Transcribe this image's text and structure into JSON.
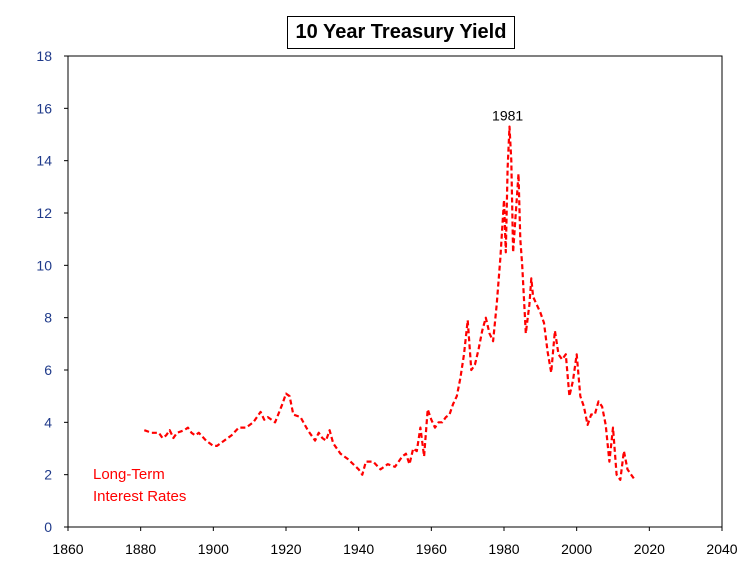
{
  "chart_data": {
    "type": "line",
    "title": "10 Year Treasury Yield",
    "xlabel": "",
    "ylabel": "",
    "xlim": [
      1860,
      2040
    ],
    "ylim": [
      0,
      18
    ],
    "xticks": [
      1860,
      1880,
      1900,
      1920,
      1940,
      1960,
      1980,
      2000,
      2020,
      2040
    ],
    "yticks": [
      0,
      2,
      4,
      6,
      8,
      10,
      12,
      14,
      16,
      18
    ],
    "grid": false,
    "legend": "none",
    "line_color": "#ff0000",
    "line_style": "dashed",
    "annotations": [
      {
        "text": "1981",
        "x": 1981,
        "y": 15.3
      },
      {
        "text_lines": [
          "Long-Term",
          "Interest Rates"
        ],
        "color": "#ff0000"
      }
    ],
    "series": [
      {
        "x": [
          1881,
          1883,
          1885,
          1886,
          1887,
          1888,
          1889,
          1890,
          1892,
          1893,
          1894,
          1895,
          1896,
          1898,
          1900,
          1901,
          1903,
          1905,
          1907,
          1909,
          1911,
          1913,
          1914,
          1915,
          1917,
          1919,
          1920,
          1921,
          1922,
          1924,
          1926,
          1928,
          1929,
          1930,
          1931,
          1932,
          1933,
          1935,
          1937,
          1940,
          1941,
          1942,
          1944,
          1946,
          1948,
          1950,
          1952,
          1953,
          1954,
          1955,
          1956,
          1957,
          1958,
          1959,
          1960,
          1961,
          1962,
          1963,
          1964,
          1965,
          1966,
          1967,
          1968,
          1969,
          1970,
          1971,
          1972,
          1973,
          1974,
          1975,
          1976,
          1977,
          1978,
          1979,
          1980,
          1980.5,
          1981,
          1981.5,
          1982,
          1982.5,
          1983,
          1984,
          1984.5,
          1985,
          1986,
          1987,
          1987.5,
          1988,
          1989,
          1990,
          1991,
          1992,
          1993,
          1994,
          1995,
          1996,
          1997,
          1998,
          1999,
          2000,
          2001,
          2002,
          2003,
          2004,
          2005,
          2006,
          2007,
          2008,
          2009,
          2010,
          2011,
          2012,
          2013,
          2014,
          2015,
          2016
        ],
        "values": [
          3.7,
          3.6,
          3.6,
          3.4,
          3.5,
          3.7,
          3.4,
          3.6,
          3.7,
          3.8,
          3.6,
          3.5,
          3.6,
          3.3,
          3.1,
          3.1,
          3.3,
          3.5,
          3.8,
          3.8,
          4.0,
          4.4,
          4.1,
          4.2,
          4.0,
          4.7,
          5.1,
          5.0,
          4.3,
          4.2,
          3.7,
          3.3,
          3.6,
          3.4,
          3.3,
          3.7,
          3.2,
          2.8,
          2.6,
          2.2,
          2.0,
          2.5,
          2.5,
          2.2,
          2.4,
          2.3,
          2.7,
          2.8,
          2.4,
          3.0,
          2.9,
          3.8,
          2.7,
          4.5,
          4.1,
          3.8,
          4.0,
          4.0,
          4.2,
          4.3,
          4.7,
          5.0,
          5.7,
          6.6,
          7.9,
          6.0,
          6.2,
          6.8,
          7.5,
          8.0,
          7.4,
          7.1,
          8.5,
          10.3,
          12.5,
          10.5,
          13.7,
          15.3,
          14.0,
          10.5,
          11.5,
          13.5,
          11.0,
          10.0,
          7.4,
          8.5,
          9.5,
          8.8,
          8.5,
          8.2,
          7.8,
          6.7,
          5.9,
          7.5,
          6.6,
          6.4,
          6.6,
          5.0,
          5.6,
          6.6,
          5.0,
          4.6,
          3.9,
          4.3,
          4.3,
          4.8,
          4.6,
          3.9,
          2.5,
          3.8,
          2.0,
          1.8,
          2.9,
          2.2,
          2.0,
          1.8
        ]
      }
    ]
  }
}
